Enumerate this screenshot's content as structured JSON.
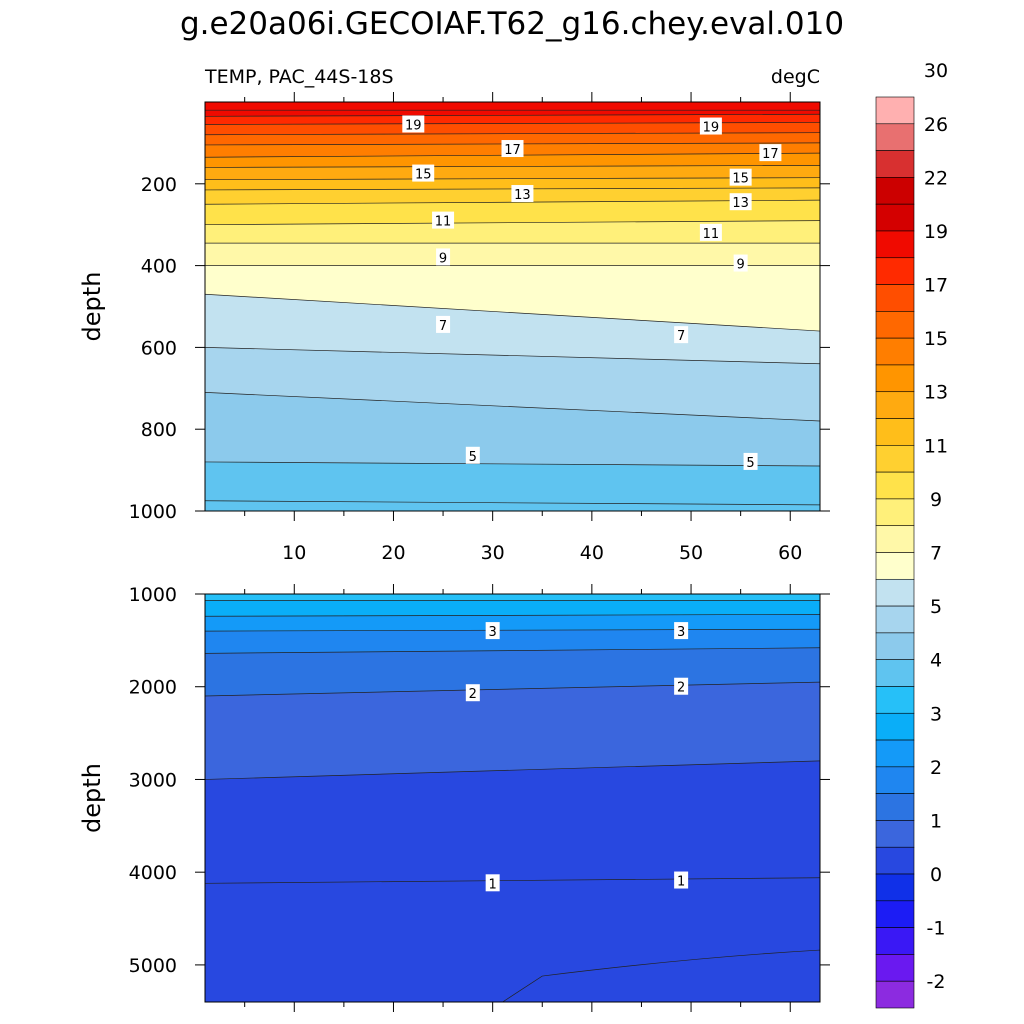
{
  "chart_data": {
    "type": "contour",
    "title": "g.e20a06i.GECOIAF.T62_g16.chey.eval.010",
    "left_label": "TEMP, PAC_44S-18S",
    "right_label": "degC",
    "xlim": [
      1,
      63
    ],
    "x_ticks": [
      10,
      20,
      30,
      40,
      50,
      60
    ],
    "panels": [
      {
        "name": "upper",
        "ylabel": "depth",
        "ylim": [
          0,
          1000
        ],
        "y_ticks": [
          200,
          400,
          600,
          800,
          1000
        ],
        "contour_labels": [
          {
            "text": "19",
            "x": 22,
            "y": 55
          },
          {
            "text": "17",
            "x": 32,
            "y": 115
          },
          {
            "text": "15",
            "x": 23,
            "y": 175
          },
          {
            "text": "13",
            "x": 33,
            "y": 225
          },
          {
            "text": "11",
            "x": 25,
            "y": 290
          },
          {
            "text": "9",
            "x": 25,
            "y": 380
          },
          {
            "text": "7",
            "x": 25,
            "y": 545
          },
          {
            "text": "5",
            "x": 28,
            "y": 865
          },
          {
            "text": "19",
            "x": 52,
            "y": 60
          },
          {
            "text": "17",
            "x": 58,
            "y": 125
          },
          {
            "text": "15",
            "x": 55,
            "y": 185
          },
          {
            "text": "13",
            "x": 55,
            "y": 245
          },
          {
            "text": "11",
            "x": 52,
            "y": 320
          },
          {
            "text": "9",
            "x": 55,
            "y": 395
          },
          {
            "text": "7",
            "x": 49,
            "y": 570
          },
          {
            "text": "5",
            "x": 56,
            "y": 880
          }
        ]
      },
      {
        "name": "lower",
        "ylabel": "depth",
        "ylim": [
          1000,
          5400
        ],
        "y_ticks": [
          1000,
          2000,
          3000,
          4000,
          5000
        ],
        "contour_labels": [
          {
            "text": "3",
            "x": 30,
            "y": 1400
          },
          {
            "text": "3",
            "x": 49,
            "y": 1400
          },
          {
            "text": "2",
            "x": 28,
            "y": 2070
          },
          {
            "text": "2",
            "x": 49,
            "y": 2000
          },
          {
            "text": "1",
            "x": 30,
            "y": 4120
          },
          {
            "text": "1",
            "x": 49,
            "y": 4090
          }
        ]
      }
    ],
    "colorbar": {
      "levels": [
        "-2",
        "-1",
        "0",
        "1",
        "2",
        "3",
        "4",
        "5",
        "7",
        "9",
        "11",
        "13",
        "15",
        "17",
        "19",
        "22",
        "26",
        "30"
      ],
      "colors": [
        "#8C2BE0",
        "#6A19F0",
        "#3A18F5",
        "#1C1CF5",
        "#1030E8",
        "#2848E0",
        "#3B66DD",
        "#2C74E2",
        "#1F86F0",
        "#149AF8",
        "#0AAEF8",
        "#26C0F8",
        "#5FC4F0",
        "#8CCAEC",
        "#A7D5EE",
        "#C2E2F0",
        "#FFFFCC",
        "#FFF8A8",
        "#FFF07A",
        "#FFE24A",
        "#FFD030",
        "#FFBE1A",
        "#FFAA10",
        "#FF9500",
        "#FF7E00",
        "#FF6800",
        "#FF4E00",
        "#FF2A00",
        "#F00A00",
        "#D40000",
        "#CC0000",
        "#D83030",
        "#E87070",
        "#FFB0B0"
      ]
    }
  }
}
